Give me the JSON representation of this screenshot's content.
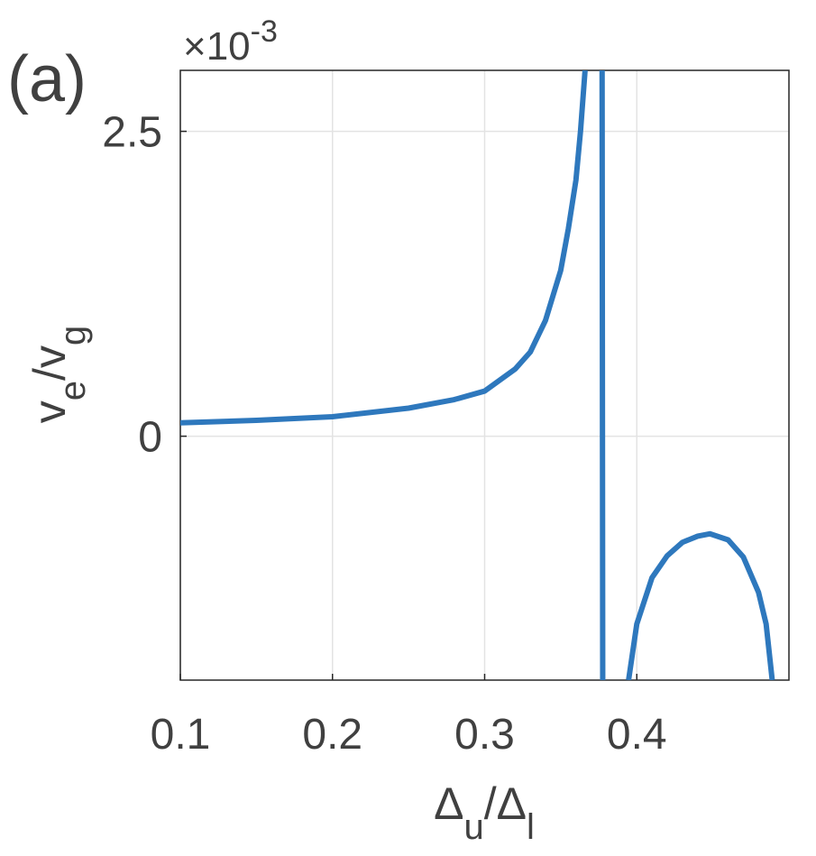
{
  "chart_data": {
    "type": "line",
    "panel_label": "(a)",
    "exponent": {
      "base": "×10",
      "power": "-3"
    },
    "xlabel": [
      "Δ",
      "u",
      "/Δ",
      "l"
    ],
    "ylabel": [
      "v",
      "e",
      "/v",
      "g"
    ],
    "x": [
      0.1,
      0.15,
      0.2,
      0.25,
      0.28,
      0.3,
      0.32,
      0.33,
      0.34,
      0.35,
      0.355,
      0.36,
      0.363,
      0.366,
      null,
      0.3772,
      0.3776,
      null,
      0.3946,
      0.4,
      0.41,
      0.42,
      0.43,
      0.44,
      0.448,
      0.46,
      0.47,
      0.48,
      0.485,
      0.489
    ],
    "series": [
      {
        "name": "v_e/v_g",
        "color": "#2e78bd",
        "values": [
          0.11,
          0.13,
          0.16,
          0.23,
          0.3,
          0.37,
          0.55,
          0.69,
          0.95,
          1.36,
          1.7,
          2.1,
          2.5,
          3.0,
          null,
          3.0,
          -2.0,
          null,
          -2.0,
          -1.54,
          -1.16,
          -0.98,
          -0.87,
          -0.82,
          -0.8,
          -0.85,
          -0.99,
          -1.28,
          -1.54,
          -2.0
        ]
      }
    ],
    "xlim": [
      0.1,
      0.5
    ],
    "ylim": [
      -2,
      3
    ],
    "xticks": [
      0.1,
      0.2,
      0.3,
      0.4
    ],
    "yticks": [
      0,
      2.5
    ],
    "grid": true
  }
}
